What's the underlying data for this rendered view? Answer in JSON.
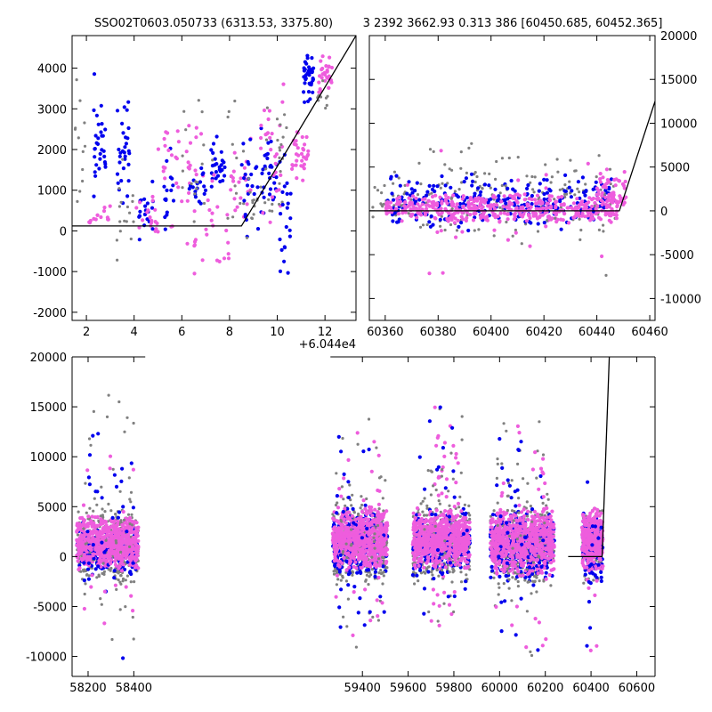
{
  "figure": {
    "title_left": "SSO02T0603.050733 (6313.53, 3375.80)",
    "title_right": "3 2392 3662.93 0.313 386 [60450.685, 60452.365]"
  },
  "colors": {
    "gray": "#808080",
    "blue": "#0000ee",
    "pink": "#ee5ddd",
    "line": "#000000"
  },
  "chart_data": [
    {
      "id": "panel-zoom",
      "type": "scatter",
      "xlim": [
        1.4,
        13.3
      ],
      "ylim": [
        -2200,
        4800
      ],
      "xticks": [
        2,
        4,
        6,
        8,
        10,
        12
      ],
      "yticks": [
        -2000,
        -1000,
        0,
        1000,
        2000,
        3000,
        4000
      ],
      "yaxis_side": "left",
      "offset_label": "+6.044e4",
      "model_line": {
        "x": [
          1.4,
          8.5,
          13.3
        ],
        "y": [
          120,
          120,
          4800
        ]
      },
      "clusters": [
        {
          "x": [
            1.5,
            2.0
          ],
          "y": [
            -300,
            4400
          ],
          "n": 12,
          "color": "gray",
          "r": 1.6
        },
        {
          "x": [
            2.3,
            2.8
          ],
          "y": [
            300,
            3900
          ],
          "n": 30,
          "color": "blue",
          "r": 2.1
        },
        {
          "x": [
            2.0,
            3.2
          ],
          "y": [
            -200,
            700
          ],
          "n": 14,
          "color": "pink",
          "r": 2.1
        },
        {
          "x": [
            3.3,
            3.8
          ],
          "y": [
            200,
            3800
          ],
          "n": 30,
          "color": "blue",
          "r": 2.1
        },
        {
          "x": [
            3.2,
            4.0
          ],
          "y": [
            -800,
            1800
          ],
          "n": 16,
          "color": "gray",
          "r": 1.6
        },
        {
          "x": [
            4.2,
            4.8
          ],
          "y": [
            -300,
            1400
          ],
          "n": 22,
          "color": "blue",
          "r": 2.1
        },
        {
          "x": [
            4.0,
            5.0
          ],
          "y": [
            -300,
            900
          ],
          "n": 18,
          "color": "pink",
          "r": 2.1
        },
        {
          "x": [
            5.2,
            5.8
          ],
          "y": [
            -400,
            2400
          ],
          "n": 18,
          "color": "blue",
          "r": 2.1
        },
        {
          "x": [
            5.0,
            6.0
          ],
          "y": [
            -300,
            3100
          ],
          "n": 20,
          "color": "pink",
          "r": 2.1
        },
        {
          "x": [
            6.2,
            6.9
          ],
          "y": [
            -2000,
            3300
          ],
          "n": 24,
          "color": "pink",
          "r": 2.1
        },
        {
          "x": [
            6.3,
            7.0
          ],
          "y": [
            400,
            1800
          ],
          "n": 18,
          "color": "blue",
          "r": 2.1
        },
        {
          "x": [
            6.0,
            7.3
          ],
          "y": [
            -500,
            3500
          ],
          "n": 18,
          "color": "gray",
          "r": 1.6
        },
        {
          "x": [
            7.2,
            7.8
          ],
          "y": [
            700,
            2500
          ],
          "n": 26,
          "color": "blue",
          "r": 2.1
        },
        {
          "x": [
            7.0,
            8.0
          ],
          "y": [
            -1100,
            1500
          ],
          "n": 18,
          "color": "pink",
          "r": 2.1
        },
        {
          "x": [
            7.8,
            8.6
          ],
          "y": [
            -400,
            3600
          ],
          "n": 16,
          "color": "gray",
          "r": 1.6
        },
        {
          "x": [
            8.0,
            8.9
          ],
          "y": [
            200,
            2300
          ],
          "n": 22,
          "color": "pink",
          "r": 2.1
        },
        {
          "x": [
            8.5,
            9.2
          ],
          "y": [
            -200,
            2500
          ],
          "n": 22,
          "color": "blue",
          "r": 2.1
        },
        {
          "x": [
            8.7,
            9.5
          ],
          "y": [
            -300,
            1700
          ],
          "n": 14,
          "color": "gray",
          "r": 1.6
        },
        {
          "x": [
            9.3,
            10.0
          ],
          "y": [
            300,
            2800
          ],
          "n": 30,
          "color": "blue",
          "r": 2.1
        },
        {
          "x": [
            9.3,
            10.3
          ],
          "y": [
            -500,
            4500
          ],
          "n": 28,
          "color": "pink",
          "r": 2.1
        },
        {
          "x": [
            9.5,
            10.5
          ],
          "y": [
            0,
            4200
          ],
          "n": 22,
          "color": "gray",
          "r": 1.6
        },
        {
          "x": [
            10.1,
            10.6
          ],
          "y": [
            -1600,
            2400
          ],
          "n": 22,
          "color": "blue",
          "r": 2.1
        },
        {
          "x": [
            10.6,
            11.3
          ],
          "y": [
            1000,
            2700
          ],
          "n": 34,
          "color": "pink",
          "r": 2.1
        },
        {
          "x": [
            11.1,
            11.6
          ],
          "y": [
            3100,
            4400
          ],
          "n": 36,
          "color": "blue",
          "r": 2.1
        },
        {
          "x": [
            11.7,
            12.3
          ],
          "y": [
            3200,
            4550
          ],
          "n": 30,
          "color": "pink",
          "r": 2.1
        },
        {
          "x": [
            11.6,
            12.2
          ],
          "y": [
            2600,
            4300
          ],
          "n": 10,
          "color": "gray",
          "r": 1.6
        }
      ]
    },
    {
      "id": "panel-recent",
      "type": "scatter",
      "xlim": [
        60354,
        60462
      ],
      "ylim": [
        -12500,
        20000
      ],
      "xticks": [
        60360,
        60380,
        60400,
        60420,
        60440,
        60460
      ],
      "yticks": [
        -10000,
        -5000,
        0,
        5000,
        10000,
        15000,
        20000
      ],
      "yaxis_side": "right",
      "model_line": {
        "x": [
          60354,
          60448.5,
          60462
        ],
        "y": [
          0,
          0,
          12500
        ]
      },
      "clusters": [
        {
          "x": [
            60355,
            60447
          ],
          "y": [
            -4000,
            7000
          ],
          "n": 180,
          "color": "gray",
          "r": 1.6
        },
        {
          "x": [
            60360,
            60448
          ],
          "y": [
            -2500,
            4500
          ],
          "n": 260,
          "color": "blue",
          "r": 2.1
        },
        {
          "x": [
            60360,
            60448
          ],
          "y": [
            -1500,
            2000
          ],
          "n": 420,
          "color": "pink",
          "r": 2.1
        },
        {
          "x": [
            60365,
            60445
          ],
          "y": [
            -10000,
            10000
          ],
          "n": 28,
          "color": "pink",
          "r": 2.1
        },
        {
          "x": [
            60365,
            60445
          ],
          "y": [
            -11000,
            9000
          ],
          "n": 16,
          "color": "gray",
          "r": 1.6
        },
        {
          "x": [
            60440,
            60451
          ],
          "y": [
            -1000,
            5000
          ],
          "n": 60,
          "color": "pink",
          "r": 2.1
        }
      ]
    },
    {
      "id": "panel-full",
      "type": "scatter",
      "xlim": [
        58130,
        60680
      ],
      "ylim": [
        -12000,
        20000
      ],
      "xticks": [
        58200,
        58400,
        59400,
        59600,
        59800,
        60000,
        60200,
        60400,
        60600
      ],
      "yticks": [
        -10000,
        -5000,
        0,
        5000,
        10000,
        15000,
        20000
      ],
      "yaxis_side": "left",
      "gap": {
        "from": 58450,
        "to": 59260
      },
      "model_line": {
        "x": [
          60300,
          60448.5,
          60480
        ],
        "y": [
          0,
          0,
          20000
        ]
      },
      "clusters": [
        {
          "x": [
            58150,
            58420
          ],
          "y": [
            -3000,
            5000
          ],
          "n": 420,
          "color": "gray",
          "r": 1.6
        },
        {
          "x": [
            58150,
            58420
          ],
          "y": [
            -2500,
            4000
          ],
          "n": 170,
          "color": "blue",
          "r": 2.1
        },
        {
          "x": [
            58150,
            58420
          ],
          "y": [
            -1500,
            4200
          ],
          "n": 620,
          "color": "pink",
          "r": 2.1
        },
        {
          "x": [
            58180,
            58400
          ],
          "y": [
            -10500,
            18000
          ],
          "n": 60,
          "color": "gray",
          "r": 1.6
        },
        {
          "x": [
            58180,
            58400
          ],
          "y": [
            -11000,
            15500
          ],
          "n": 34,
          "color": "blue",
          "r": 2.1
        },
        {
          "x": [
            58180,
            58400
          ],
          "y": [
            -10500,
            13000
          ],
          "n": 30,
          "color": "pink",
          "r": 2.1
        },
        {
          "x": [
            59270,
            59510
          ],
          "y": [
            -3000,
            5500
          ],
          "n": 380,
          "color": "gray",
          "r": 1.6
        },
        {
          "x": [
            59270,
            59510
          ],
          "y": [
            -2500,
            5000
          ],
          "n": 240,
          "color": "blue",
          "r": 2.1
        },
        {
          "x": [
            59270,
            59510
          ],
          "y": [
            -1500,
            5000
          ],
          "n": 620,
          "color": "pink",
          "r": 2.1
        },
        {
          "x": [
            59280,
            59500
          ],
          "y": [
            -11500,
            16500
          ],
          "n": 50,
          "color": "gray",
          "r": 1.6
        },
        {
          "x": [
            59280,
            59500
          ],
          "y": [
            -10500,
            15000
          ],
          "n": 34,
          "color": "blue",
          "r": 2.1
        },
        {
          "x": [
            59280,
            59500
          ],
          "y": [
            -11500,
            17000
          ],
          "n": 40,
          "color": "pink",
          "r": 2.1
        },
        {
          "x": [
            59620,
            59870
          ],
          "y": [
            -3000,
            5500
          ],
          "n": 360,
          "color": "gray",
          "r": 1.6
        },
        {
          "x": [
            59620,
            59870
          ],
          "y": [
            -2500,
            5000
          ],
          "n": 240,
          "color": "blue",
          "r": 2.1
        },
        {
          "x": [
            59620,
            59870
          ],
          "y": [
            -1500,
            5000
          ],
          "n": 600,
          "color": "pink",
          "r": 2.1
        },
        {
          "x": [
            59700,
            59820
          ],
          "y": [
            -11500,
            19500
          ],
          "n": 50,
          "color": "pink",
          "r": 2.1
        },
        {
          "x": [
            59650,
            59860
          ],
          "y": [
            -11000,
            17000
          ],
          "n": 40,
          "color": "gray",
          "r": 1.6
        },
        {
          "x": [
            59650,
            59860
          ],
          "y": [
            -9000,
            16000
          ],
          "n": 26,
          "color": "blue",
          "r": 2.1
        },
        {
          "x": [
            59960,
            60240
          ],
          "y": [
            -3500,
            5500
          ],
          "n": 380,
          "color": "gray",
          "r": 1.6
        },
        {
          "x": [
            59960,
            60240
          ],
          "y": [
            -3000,
            5000
          ],
          "n": 280,
          "color": "blue",
          "r": 2.1
        },
        {
          "x": [
            59960,
            60240
          ],
          "y": [
            -2000,
            5000
          ],
          "n": 620,
          "color": "pink",
          "r": 2.1
        },
        {
          "x": [
            59980,
            60220
          ],
          "y": [
            -12000,
            15500
          ],
          "n": 60,
          "color": "gray",
          "r": 1.6
        },
        {
          "x": [
            59980,
            60220
          ],
          "y": [
            -11500,
            15000
          ],
          "n": 36,
          "color": "blue",
          "r": 2.1
        },
        {
          "x": [
            59980,
            60220
          ],
          "y": [
            -11500,
            15000
          ],
          "n": 44,
          "color": "pink",
          "r": 2.1
        },
        {
          "x": [
            60360,
            60452
          ],
          "y": [
            -3000,
            5000
          ],
          "n": 160,
          "color": "gray",
          "r": 1.6
        },
        {
          "x": [
            60360,
            60452
          ],
          "y": [
            -2500,
            4500
          ],
          "n": 130,
          "color": "blue",
          "r": 2.1
        },
        {
          "x": [
            60360,
            60452
          ],
          "y": [
            -1500,
            5000
          ],
          "n": 260,
          "color": "pink",
          "r": 2.1
        },
        {
          "x": [
            60380,
            60450
          ],
          "y": [
            -11000,
            10000
          ],
          "n": 22,
          "color": "pink",
          "r": 2.1
        },
        {
          "x": [
            60380,
            60450
          ],
          "y": [
            -11000,
            9000
          ],
          "n": 16,
          "color": "blue",
          "r": 2.1
        }
      ]
    }
  ]
}
